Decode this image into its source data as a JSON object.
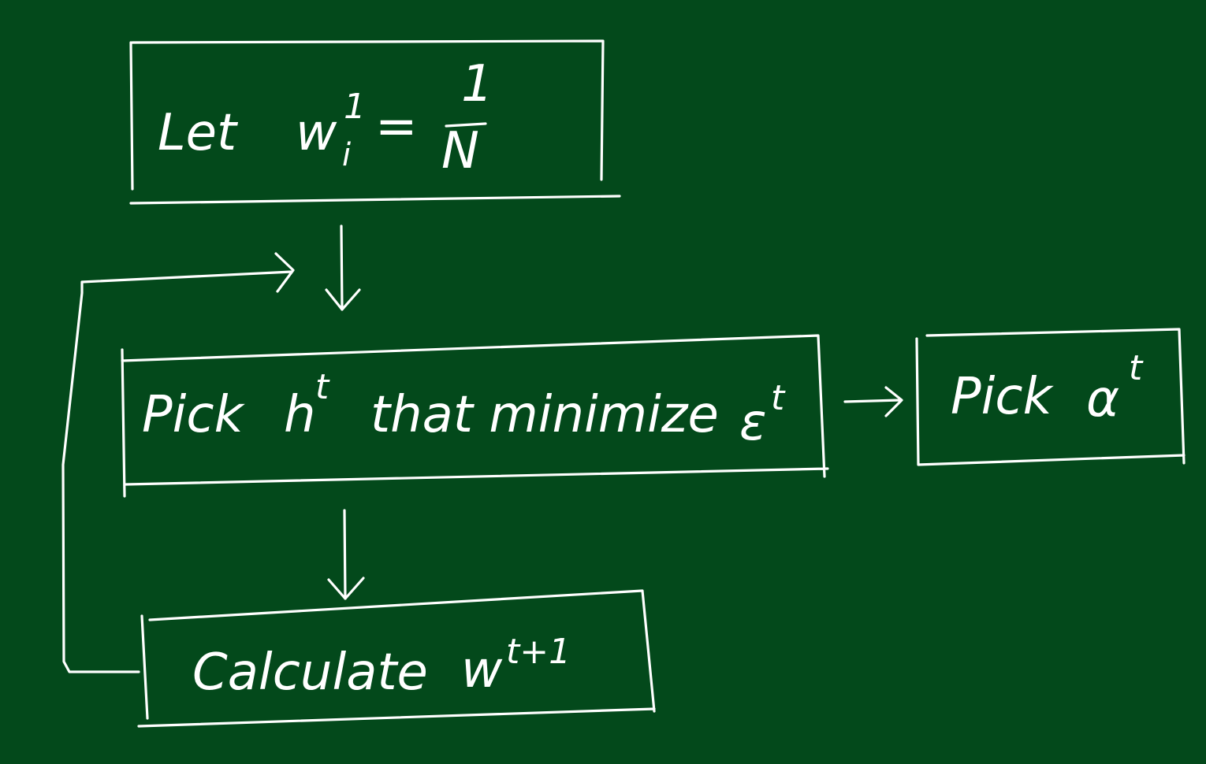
{
  "diagram": {
    "background_color": "#03491b",
    "ink_color": "#ffffff",
    "nodes": {
      "init": {
        "prefix": "Let",
        "variable": "w",
        "superscript": "1",
        "subscript": "i",
        "equals": "=",
        "numerator": "1",
        "denominator": "N"
      },
      "pick_h": {
        "label_prefix": "Pick",
        "variable": "h",
        "superscript": "t",
        "label_middle": "that minimize",
        "error_symbol": "ε",
        "error_superscript": "t"
      },
      "pick_alpha": {
        "label_prefix": "Pick",
        "symbol": "α",
        "superscript": "t"
      },
      "calculate": {
        "label_prefix": "Calculate",
        "variable": "w",
        "superscript": "t+1"
      }
    }
  }
}
